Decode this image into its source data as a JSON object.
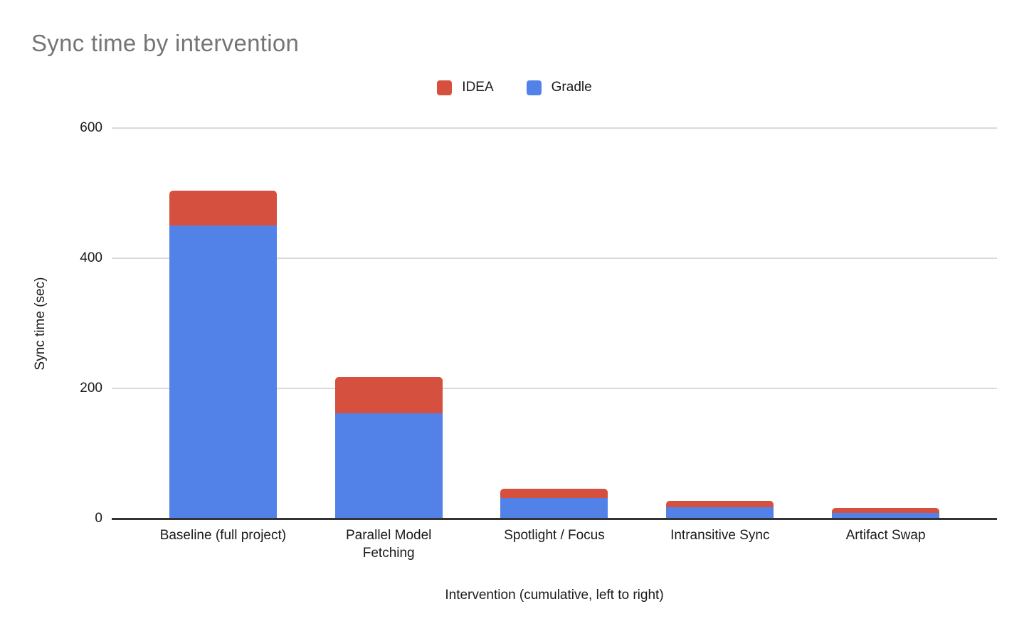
{
  "title": "Sync time by intervention",
  "legend": [
    {
      "label": "IDEA",
      "color": "#d5503f"
    },
    {
      "label": "Gradle",
      "color": "#5282e8"
    }
  ],
  "chart_data": {
    "type": "bar",
    "stacked": true,
    "title": "Sync time by intervention",
    "xlabel": "Intervention (cumulative, left to right)",
    "ylabel": "Sync time (sec)",
    "categories": [
      "Baseline (full project)",
      "Parallel Model Fetching",
      "Spotlight / Focus",
      "Intransitive Sync",
      "Artifact Swap"
    ],
    "series": [
      {
        "name": "IDEA",
        "color": "#d5503f",
        "values": [
          54,
          56,
          14,
          9,
          7
        ]
      },
      {
        "name": "Gradle",
        "color": "#5282e8",
        "values": [
          450,
          162,
          32,
          18,
          9
        ]
      }
    ],
    "totals": [
      504,
      218,
      46,
      27,
      16
    ],
    "ylim": [
      0,
      600
    ],
    "yticks": [
      0,
      200,
      400,
      600
    ],
    "grid": true,
    "legend_position": "top"
  },
  "colors": {
    "title_text": "#757575",
    "axis_text": "#1a1a1a",
    "gridline": "#d9d9d9",
    "axis_line": "#333333",
    "background": "#ffffff"
  }
}
